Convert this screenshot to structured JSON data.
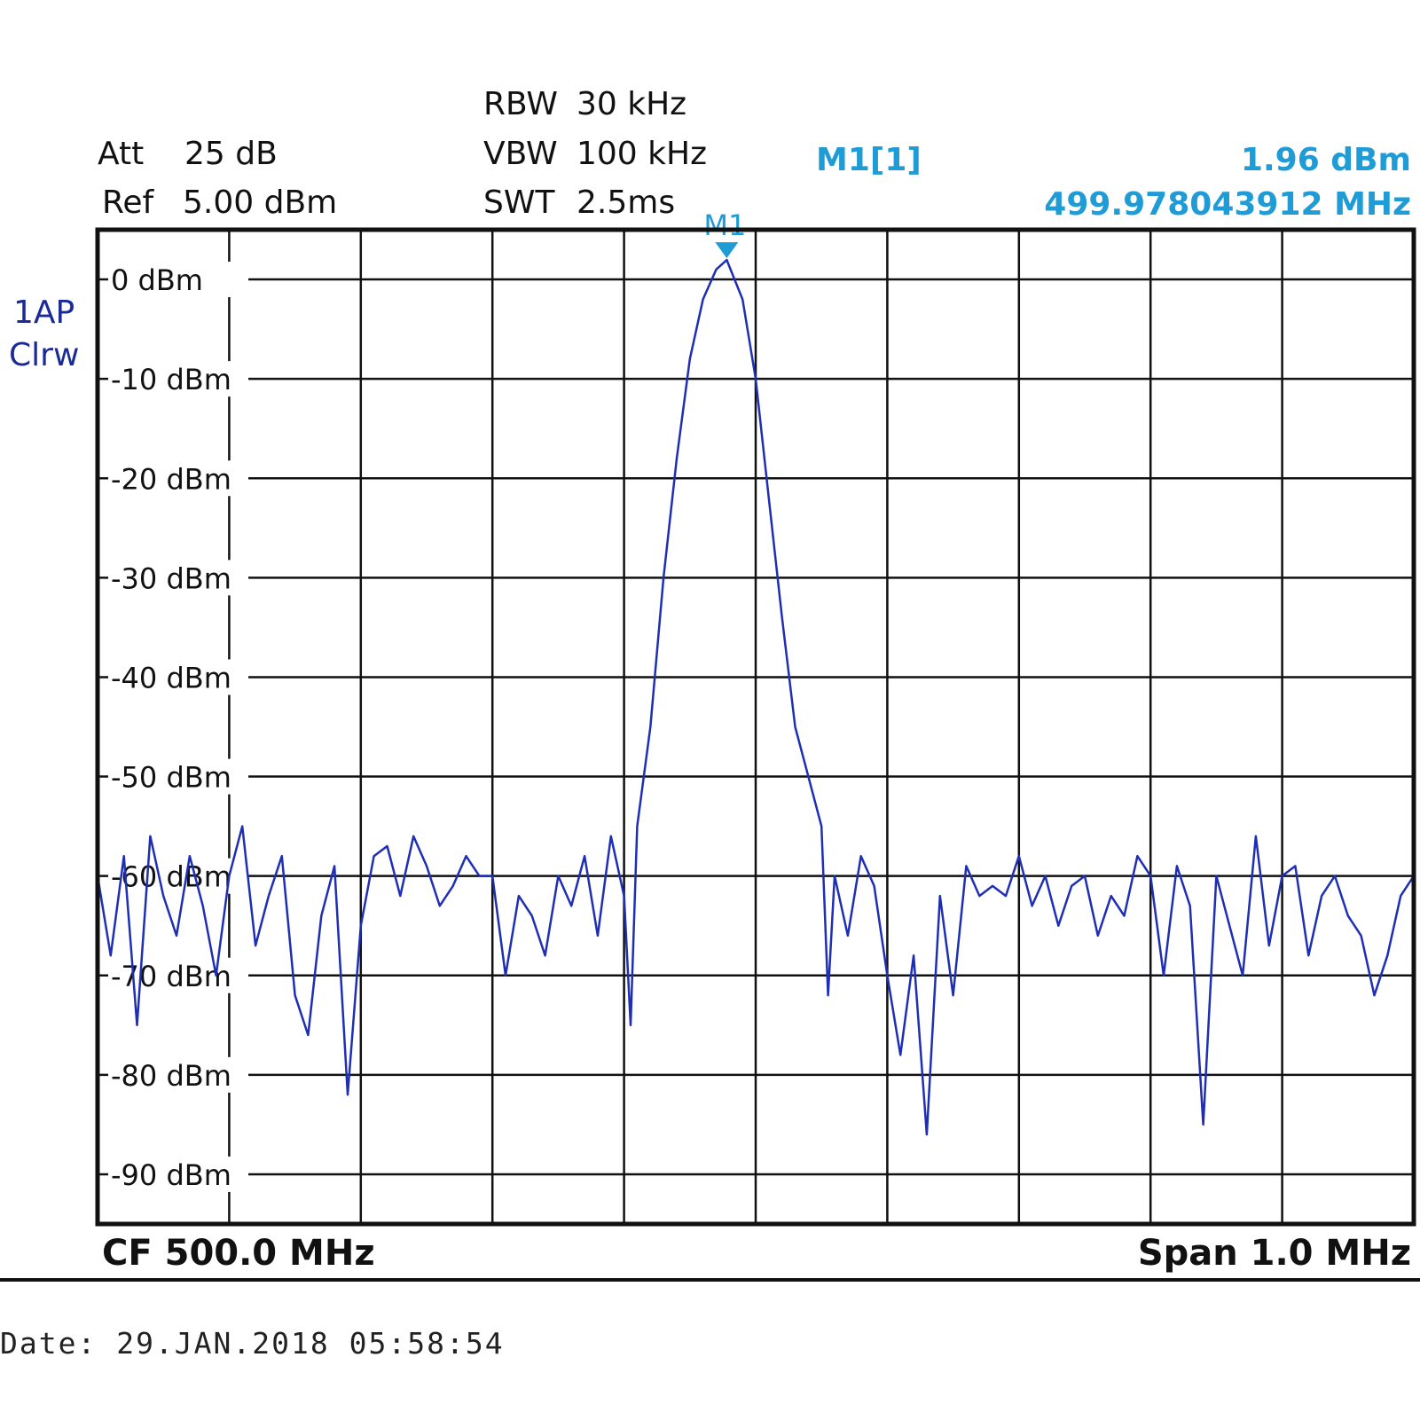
{
  "settings": {
    "att_label": "Att",
    "att_value": "25 dB",
    "ref_label": "Ref",
    "ref_value": "5.00 dBm",
    "rbw_label": "RBW",
    "rbw_value": "30 kHz",
    "vbw_label": "VBW",
    "vbw_value": "100 kHz",
    "swt_label": "SWT",
    "swt_value": "2.5ms"
  },
  "marker": {
    "name": "M1[1]",
    "level": "1.96 dBm",
    "frequency": "499.978043912 MHz",
    "tag": "M1"
  },
  "trace": {
    "label_line1": "1AP",
    "label_line2": "Clrw"
  },
  "footer": {
    "center": "CF 500.0 MHz",
    "span": "Span 1.0 MHz",
    "date": "Date: 29.JAN.2018  05:58:54"
  },
  "colors": {
    "trace": "#1f2fb5",
    "marker": "#1f9bd6",
    "grid": "#111111"
  },
  "chart_data": {
    "type": "line",
    "xlim": [
      499.5,
      500.5
    ],
    "ylim": [
      -95,
      5
    ],
    "grid": true,
    "y_ticks": [
      0,
      -10,
      -20,
      -30,
      -40,
      -50,
      -60,
      -70,
      -80,
      -90
    ],
    "y_tick_labels": [
      "0 dBm",
      "-10 dBm",
      "-20 dBm",
      "-30 dBm",
      "-40 dBm",
      "-50 dBm",
      "-60 dBm",
      "-70 dBm",
      "-80 dBm",
      "-90 dBm"
    ],
    "marker_point": {
      "x": 499.978,
      "y": 1.96
    },
    "series": [
      {
        "x": [
          499.5,
          499.51,
          499.52,
          499.53,
          499.54,
          499.55,
          499.56,
          499.57,
          499.58,
          499.59,
          499.6,
          499.61,
          499.62,
          499.63,
          499.64,
          499.65,
          499.66,
          499.67,
          499.68,
          499.69,
          499.7,
          499.71,
          499.72,
          499.73,
          499.74,
          499.75,
          499.76,
          499.77,
          499.78,
          499.79,
          499.8,
          499.81,
          499.82,
          499.83,
          499.84,
          499.85,
          499.86,
          499.87,
          499.88,
          499.89,
          499.9,
          499.905,
          499.91,
          499.92,
          499.93,
          499.94,
          499.95,
          499.96,
          499.97,
          499.978,
          499.99,
          500.0,
          500.01,
          500.02,
          500.03,
          500.04,
          500.05,
          500.055,
          500.06,
          500.07,
          500.08,
          500.09,
          500.1,
          500.11,
          500.12,
          500.13,
          500.14,
          500.15,
          500.16,
          500.17,
          500.18,
          500.19,
          500.2,
          500.21,
          500.22,
          500.23,
          500.24,
          500.25,
          500.26,
          500.27,
          500.28,
          500.29,
          500.3,
          500.31,
          500.32,
          500.33,
          500.34,
          500.35,
          500.36,
          500.37,
          500.38,
          500.39,
          500.4,
          500.41,
          500.42,
          500.43,
          500.44,
          500.45,
          500.46,
          500.47,
          500.48,
          500.49,
          500.5
        ],
        "y": [
          -60,
          -68,
          -58,
          -75,
          -56,
          -62,
          -66,
          -58,
          -63,
          -70,
          -60,
          -55,
          -67,
          -62,
          -58,
          -72,
          -76,
          -64,
          -59,
          -82,
          -65,
          -58,
          -57,
          -62,
          -56,
          -59,
          -63,
          -61,
          -58,
          -60,
          -60,
          -70,
          -62,
          -64,
          -68,
          -60,
          -63,
          -58,
          -66,
          -56,
          -62,
          -75,
          -55,
          -45,
          -30,
          -18,
          -8,
          -2,
          1,
          1.96,
          -2,
          -10,
          -22,
          -34,
          -45,
          -50,
          -55,
          -72,
          -60,
          -66,
          -58,
          -61,
          -70,
          -78,
          -68,
          -86,
          -62,
          -72,
          -59,
          -62,
          -61,
          -62,
          -58,
          -63,
          -60,
          -65,
          -61,
          -60,
          -66,
          -62,
          -64,
          -58,
          -60,
          -70,
          -59,
          -63,
          -85,
          -60,
          -65,
          -70,
          -56,
          -67,
          -60,
          -59,
          -68,
          -62,
          -60,
          -64,
          -66,
          -72,
          -68,
          -62,
          -60
        ]
      }
    ]
  }
}
